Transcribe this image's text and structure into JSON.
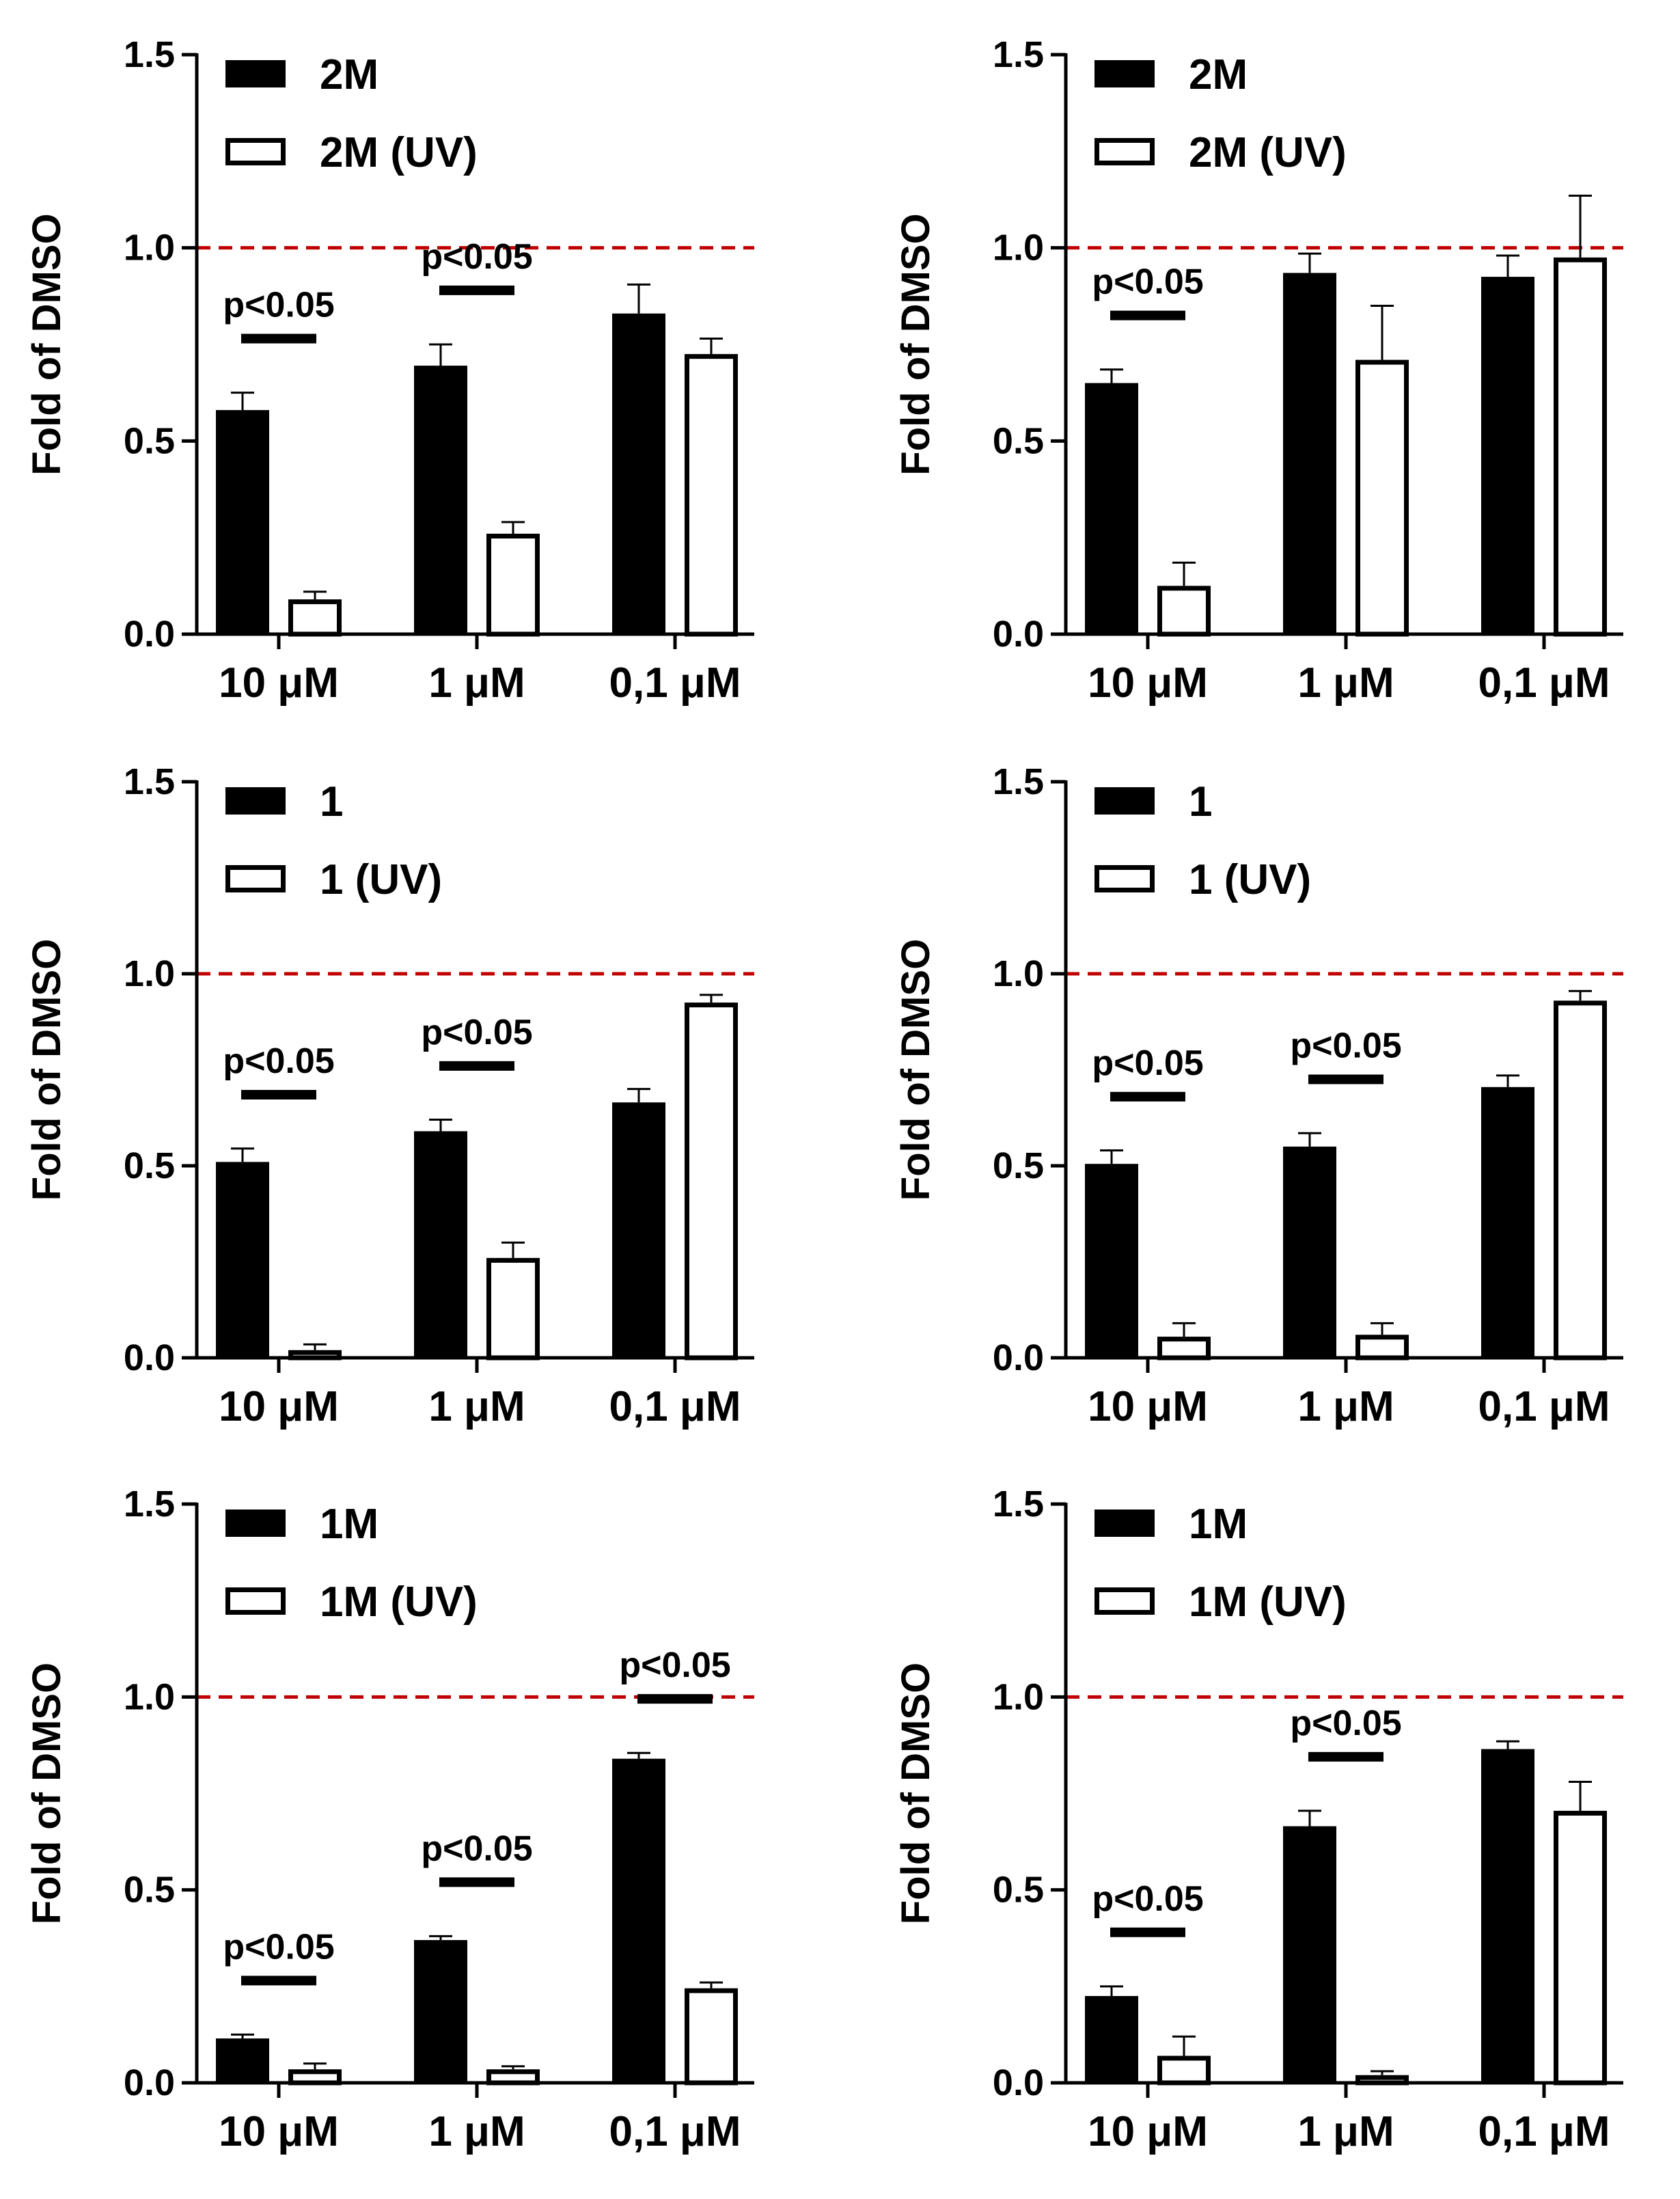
{
  "reference_line": {
    "value": 1.0,
    "color": "#c00000"
  },
  "colors": {
    "filled": "#000000",
    "open": "#ffffff",
    "stroke": "#000000"
  },
  "chart_data": [
    {
      "type": "bar",
      "panel": "top-left",
      "ylabel": "Fold of DMSO",
      "ylim": [
        0,
        1.5
      ],
      "yticks": [
        "0.0",
        "0.5",
        "1.0",
        "1.5"
      ],
      "categories": [
        "10 μM",
        "1 μM",
        "0,1 μM"
      ],
      "legend_position": "top-left",
      "series": [
        {
          "name": "2M",
          "style": "filled",
          "values": [
            0.58,
            0.695,
            0.83
          ],
          "errors": [
            0.045,
            0.055,
            0.075
          ]
        },
        {
          "name": "2M (UV)",
          "style": "open",
          "values": [
            0.09,
            0.26,
            0.725
          ],
          "errors": [
            0.02,
            0.03,
            0.04
          ]
        }
      ],
      "annotations": [
        {
          "text": "p<0.05",
          "category": 0
        },
        {
          "text": "p<0.05",
          "category": 1
        }
      ]
    },
    {
      "type": "bar",
      "panel": "top-right",
      "ylabel": "Fold of DMSO",
      "ylim": [
        0,
        1.5
      ],
      "yticks": [
        "0.0",
        "0.5",
        "1.0",
        "1.5"
      ],
      "categories": [
        "10 μM",
        "1 μM",
        "0,1 μM"
      ],
      "legend_position": "top-left",
      "series": [
        {
          "name": "2M",
          "style": "filled",
          "values": [
            0.65,
            0.935,
            0.925
          ],
          "errors": [
            0.035,
            0.05,
            0.055
          ]
        },
        {
          "name": "2M (UV)",
          "style": "open",
          "values": [
            0.125,
            0.71,
            0.975
          ],
          "errors": [
            0.06,
            0.14,
            0.16
          ]
        }
      ],
      "annotations": [
        {
          "text": "p<0.05",
          "category": 0
        }
      ]
    },
    {
      "type": "bar",
      "panel": "middle-left",
      "ylabel": "Fold of DMSO",
      "ylim": [
        0,
        1.5
      ],
      "yticks": [
        "0.0",
        "0.5",
        "1.0",
        "1.5"
      ],
      "categories": [
        "10 μM",
        "1 μM",
        "0,1 μM"
      ],
      "legend_position": "top-left",
      "series": [
        {
          "name": "1",
          "style": "filled",
          "values": [
            0.51,
            0.59,
            0.665
          ],
          "errors": [
            0.035,
            0.03,
            0.035
          ]
        },
        {
          "name": "1 (UV)",
          "style": "open",
          "values": [
            0.02,
            0.26,
            0.925
          ],
          "errors": [
            0.015,
            0.04,
            0.02
          ]
        }
      ],
      "annotations": [
        {
          "text": "p<0.05",
          "category": 0
        },
        {
          "text": "p<0.05",
          "category": 1
        }
      ]
    },
    {
      "type": "bar",
      "panel": "middle-right",
      "ylabel": "Fold of DMSO",
      "ylim": [
        0,
        1.5
      ],
      "yticks": [
        "0.0",
        "0.5",
        "1.0",
        "1.5"
      ],
      "categories": [
        "10 μM",
        "1 μM",
        "0,1 μM"
      ],
      "legend_position": "top-left",
      "series": [
        {
          "name": "1",
          "style": "filled",
          "values": [
            0.505,
            0.55,
            0.705
          ],
          "errors": [
            0.035,
            0.035,
            0.03
          ]
        },
        {
          "name": "1 (UV)",
          "style": "open",
          "values": [
            0.055,
            0.06,
            0.93
          ],
          "errors": [
            0.035,
            0.03,
            0.025
          ]
        }
      ],
      "annotations": [
        {
          "text": "p<0.05",
          "category": 0
        },
        {
          "text": "p<0.05",
          "category": 1
        }
      ]
    },
    {
      "type": "bar",
      "panel": "bottom-left",
      "ylabel": "Fold of DMSO",
      "ylim": [
        0,
        1.5
      ],
      "yticks": [
        "0.0",
        "0.5",
        "1.0",
        "1.5"
      ],
      "categories": [
        "10 μM",
        "1 μM",
        "0,1 μM"
      ],
      "legend_position": "top-left",
      "series": [
        {
          "name": "1M",
          "style": "filled",
          "values": [
            0.115,
            0.37,
            0.84
          ],
          "errors": [
            0.01,
            0.01,
            0.015
          ]
        },
        {
          "name": "1M (UV)",
          "style": "open",
          "values": [
            0.035,
            0.035,
            0.245
          ],
          "errors": [
            0.015,
            0.008,
            0.015
          ]
        }
      ],
      "annotations": [
        {
          "text": "p<0.05",
          "category": 0
        },
        {
          "text": "p<0.05",
          "category": 1
        },
        {
          "text": "p<0.05",
          "category": 2
        }
      ]
    },
    {
      "type": "bar",
      "panel": "bottom-right",
      "ylabel": "Fold of DMSO",
      "ylim": [
        0,
        1.5
      ],
      "yticks": [
        "0.0",
        "0.5",
        "1.0",
        "1.5"
      ],
      "categories": [
        "10 μM",
        "1 μM",
        "0,1 μM"
      ],
      "legend_position": "top-left",
      "series": [
        {
          "name": "1M",
          "style": "filled",
          "values": [
            0.225,
            0.665,
            0.865
          ],
          "errors": [
            0.025,
            0.04,
            0.02
          ]
        },
        {
          "name": "1M (UV)",
          "style": "open",
          "values": [
            0.07,
            0.02,
            0.705
          ],
          "errors": [
            0.05,
            0.01,
            0.075
          ]
        }
      ],
      "annotations": [
        {
          "text": "p<0.05",
          "category": 0
        },
        {
          "text": "p<0.05",
          "category": 1
        }
      ]
    }
  ]
}
